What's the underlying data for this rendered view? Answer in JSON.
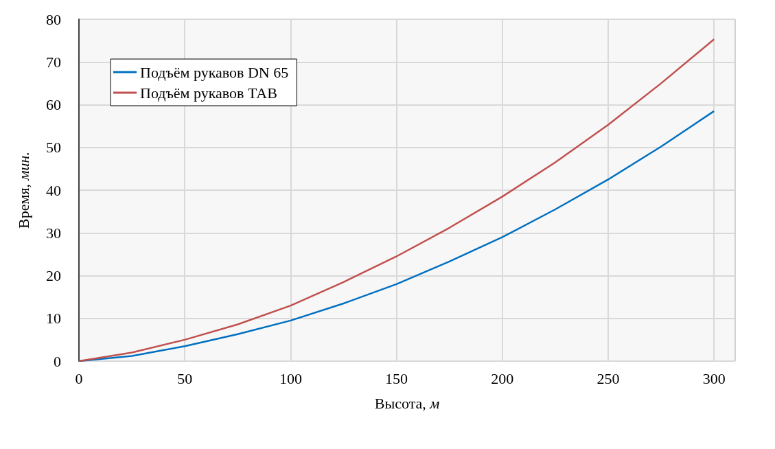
{
  "chart_data": {
    "type": "line",
    "xlabel": "Высота, м",
    "ylabel": "Время, мин.",
    "x": [
      0,
      25,
      50,
      75,
      100,
      125,
      150,
      175,
      200,
      225,
      250,
      275,
      300
    ],
    "series": [
      {
        "name": "Подъём рукавов DN 65",
        "color": "#0070c0",
        "values": [
          0,
          1.2,
          3.5,
          6.3,
          9.5,
          13.5,
          18,
          23.3,
          29,
          35.5,
          42.5,
          50.2,
          58.5
        ]
      },
      {
        "name": "Подъём рукавов ТАВ",
        "color": "#c0504d",
        "values": [
          0,
          2,
          5,
          8.6,
          13,
          18.5,
          24.5,
          31.2,
          38.5,
          46.5,
          55.3,
          65,
          75.3
        ]
      }
    ],
    "xlim": [
      0,
      310
    ],
    "xticks": [
      0,
      50,
      100,
      150,
      200,
      250,
      300
    ],
    "ylim": [
      0,
      80
    ],
    "yticks": [
      0,
      10,
      20,
      30,
      40,
      50,
      60,
      70,
      80
    ],
    "grid": true,
    "legend": "top left",
    "marker": "none",
    "line_style": "solid"
  }
}
